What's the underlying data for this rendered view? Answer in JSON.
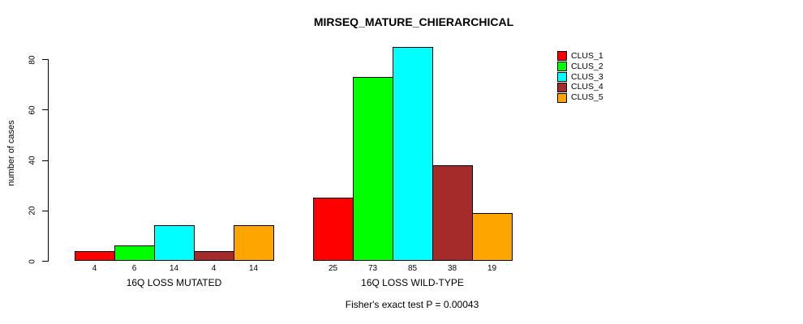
{
  "page": {
    "background": "#ffffff",
    "text_color": "#000000"
  },
  "chart_data": {
    "type": "bar",
    "grouped": true,
    "title": "MIRSEQ_MATURE_CHIERARCHICAL",
    "ylabel": "number of cases",
    "xlabel": "",
    "categories": [
      "16Q LOSS MUTATED",
      "16Q LOSS WILD-TYPE"
    ],
    "series": [
      {
        "name": "CLUS_1",
        "color": "#FF0000",
        "values": [
          4,
          25
        ]
      },
      {
        "name": "CLUS_2",
        "color": "#00FF00",
        "values": [
          6,
          73
        ]
      },
      {
        "name": "CLUS_3",
        "color": "#00FFFF",
        "values": [
          14,
          85
        ]
      },
      {
        "name": "CLUS_4",
        "color": "#A52A2A",
        "values": [
          4,
          38
        ]
      },
      {
        "name": "CLUS_5",
        "color": "#FFA500",
        "values": [
          14,
          19
        ]
      }
    ],
    "bar_value_labels": [
      [
        4,
        6,
        14,
        4,
        14
      ],
      [
        25,
        73,
        85,
        38,
        19
      ]
    ],
    "yticks": [
      0,
      20,
      40,
      60,
      80
    ],
    "ylim": [
      0,
      85
    ],
    "grid": false,
    "legend_position": "right",
    "legend_labels": [
      "CLUS_1",
      "CLUS_2",
      "CLUS_3",
      "CLUS_4",
      "CLUS_5"
    ],
    "annotation": "Fisher's exact test P = 0.00043"
  }
}
